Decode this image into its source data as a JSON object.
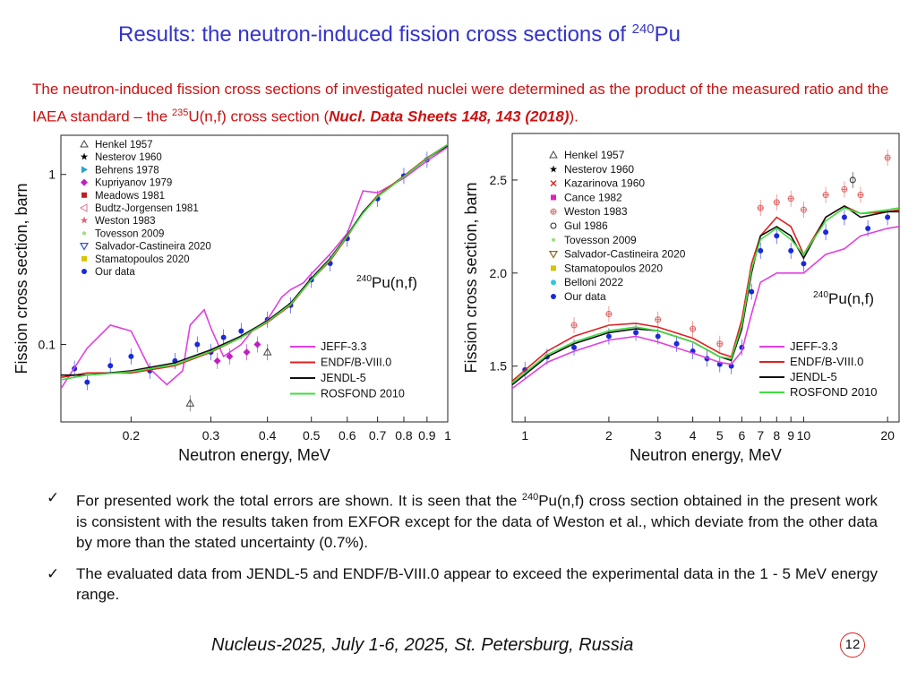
{
  "slide": {
    "title_main": "Results: the neutron-induced fission cross sections of ",
    "title_sup": "240",
    "title_tail": "Pu",
    "intro_part1": "The neutron-induced fission cross sections of investigated nuclei were determined as the product of the measured ratio and the IAEA standard – the ",
    "intro_sup": "235",
    "intro_part2": "U(n,f) cross section (",
    "intro_ref": "Nucl. Data Sheets 148, 143 (2018)",
    "intro_part3": ").",
    "bullets": [
      {
        "pre": "For presented work the total errors are shown. It is seen that the ",
        "sup": "240",
        "post": "Pu(n,f) cross section obtained in the present work is consistent with the results taken from EXFOR except for the data of Weston et al., which deviate from the other data by more than the stated uncertainty (0.7%)."
      },
      {
        "pre": "The evaluated data from JENDL-5 and ENDF/B-VIII.0 appear to exceed the experimental data in the 1 - 5 MeV energy range.",
        "sup": "",
        "post": ""
      }
    ],
    "check_glyph": "✓",
    "footer": "Nucleus-2025, July 1-6, 2025, St. Petersburg, Russia",
    "page_number": "12"
  },
  "chart_data": [
    {
      "type": "scatter",
      "xscale": "log",
      "yscale": "log",
      "xlim": [
        0.14,
        1.0
      ],
      "ylim": [
        0.035,
        1.7
      ],
      "xlabel": "Neutron energy, MeV",
      "ylabel": "Fission cross section, barn",
      "xticks": [
        0.2,
        0.3,
        0.4,
        0.5,
        0.6,
        0.7,
        0.8,
        0.9,
        1
      ],
      "xtick_labels": [
        "0.2",
        "0.3",
        "0.4",
        "0.5",
        "0.6",
        "0.7",
        "0.8",
        "0.9",
        "1"
      ],
      "yticks": [
        0.1,
        1
      ],
      "ytick_labels": [
        "0.1",
        "1"
      ],
      "reaction_sup": "240",
      "reaction": "Pu(n,f)",
      "legend_position": "top-left",
      "legend": [
        {
          "name": "Henkel 1957",
          "marker": "triangle",
          "color": "#444444"
        },
        {
          "name": "Nesterov 1960",
          "marker": "star",
          "color": "#000000"
        },
        {
          "name": "Behrens 1978",
          "marker": "triangle-right",
          "color": "#2aa6c8"
        },
        {
          "name": "Kupriyanov 1979",
          "marker": "diamond",
          "color": "#c020c0"
        },
        {
          "name": "Meadows 1981",
          "marker": "square",
          "color": "#c02020"
        },
        {
          "name": "Budtz-Jorgensen 1981",
          "marker": "triangle-left",
          "color": "#e07090"
        },
        {
          "name": "Weston 1983",
          "marker": "star",
          "color": "#e06070"
        },
        {
          "name": "Tovesson 2009",
          "marker": "dot",
          "color": "#9be07a"
        },
        {
          "name": "Salvador-Castineira 2020",
          "marker": "triangle-down",
          "color": "#3355cc"
        },
        {
          "name": "Stamatopoulos 2020",
          "marker": "square",
          "color": "#d8c400"
        },
        {
          "name": "Our data",
          "marker": "circle",
          "color": "#1a2ad8"
        }
      ],
      "line_legend_position": "bottom-right",
      "curves": [
        {
          "name": "JEFF-3.3",
          "color": "#e040e0",
          "x": [
            0.14,
            0.16,
            0.18,
            0.2,
            0.22,
            0.24,
            0.26,
            0.27,
            0.29,
            0.3,
            0.32,
            0.35,
            0.37,
            0.4,
            0.43,
            0.45,
            0.48,
            0.5,
            0.55,
            0.6,
            0.65,
            0.7,
            0.8,
            0.9,
            1.0
          ],
          "y": [
            0.055,
            0.095,
            0.13,
            0.12,
            0.072,
            0.058,
            0.07,
            0.13,
            0.16,
            0.125,
            0.085,
            0.1,
            0.12,
            0.14,
            0.19,
            0.21,
            0.23,
            0.26,
            0.34,
            0.45,
            0.8,
            0.78,
            0.95,
            1.2,
            1.45
          ]
        },
        {
          "name": "ENDF/B-VIII.0",
          "color": "#e02020",
          "x": [
            0.14,
            0.16,
            0.2,
            0.25,
            0.3,
            0.35,
            0.4,
            0.45,
            0.5,
            0.55,
            0.6,
            0.65,
            0.7,
            0.8,
            0.9,
            1.0
          ],
          "y": [
            0.064,
            0.068,
            0.068,
            0.075,
            0.09,
            0.11,
            0.135,
            0.17,
            0.24,
            0.31,
            0.43,
            0.6,
            0.75,
            0.98,
            1.25,
            1.5
          ]
        },
        {
          "name": "JENDL-5",
          "color": "#111111",
          "x": [
            0.14,
            0.16,
            0.2,
            0.25,
            0.3,
            0.35,
            0.4,
            0.45,
            0.5,
            0.55,
            0.6,
            0.65,
            0.7,
            0.8,
            0.9,
            1.0
          ],
          "y": [
            0.066,
            0.066,
            0.07,
            0.078,
            0.093,
            0.112,
            0.138,
            0.175,
            0.245,
            0.32,
            0.44,
            0.6,
            0.74,
            0.97,
            1.24,
            1.48
          ]
        },
        {
          "name": "ROSFOND 2010",
          "color": "#40dd40",
          "x": [
            0.14,
            0.16,
            0.2,
            0.25,
            0.3,
            0.35,
            0.4,
            0.45,
            0.5,
            0.55,
            0.6,
            0.65,
            0.7,
            0.8,
            0.9,
            1.0
          ],
          "y": [
            0.062,
            0.066,
            0.069,
            0.076,
            0.091,
            0.11,
            0.136,
            0.172,
            0.24,
            0.315,
            0.435,
            0.59,
            0.74,
            0.97,
            1.24,
            1.5
          ]
        }
      ],
      "measurements": [
        {
          "name": "Henkel 1957",
          "x": [
            0.27,
            0.4
          ],
          "y": [
            0.045,
            0.09
          ]
        },
        {
          "name": "Kupriyanov 1979",
          "x": [
            0.31,
            0.33,
            0.36,
            0.38
          ],
          "y": [
            0.08,
            0.085,
            0.09,
            0.1
          ]
        },
        {
          "name": "Our data",
          "x": [
            0.15,
            0.16,
            0.18,
            0.2,
            0.22,
            0.25,
            0.28,
            0.3,
            0.32,
            0.35,
            0.4,
            0.45,
            0.5,
            0.55,
            0.6,
            0.7,
            0.8,
            0.9
          ],
          "y": [
            0.072,
            0.06,
            0.075,
            0.085,
            0.07,
            0.08,
            0.1,
            0.09,
            0.11,
            0.12,
            0.14,
            0.17,
            0.24,
            0.3,
            0.42,
            0.72,
            0.98,
            1.22
          ]
        }
      ]
    },
    {
      "type": "scatter",
      "xscale": "log",
      "yscale": "linear",
      "xlim": [
        0.9,
        22
      ],
      "ylim": [
        1.2,
        2.75
      ],
      "xlabel": "Neutron energy, MeV",
      "ylabel": "Fission cross section, barn",
      "xticks": [
        1,
        2,
        3,
        4,
        5,
        6,
        7,
        8,
        9,
        10,
        20
      ],
      "xtick_labels": [
        "1",
        "2",
        "3",
        "4",
        "5",
        "6",
        "7",
        "8",
        "9",
        "10",
        "20"
      ],
      "yticks": [
        1.5,
        2.0,
        2.5
      ],
      "ytick_labels": [
        "1.5",
        "2.0",
        "2.5"
      ],
      "reaction_sup": "240",
      "reaction": "Pu(n,f)",
      "legend_position": "top-left",
      "legend": [
        {
          "name": "Henkel 1957",
          "marker": "triangle",
          "color": "#444444"
        },
        {
          "name": "Nesterov 1960",
          "marker": "star",
          "color": "#000000"
        },
        {
          "name": "Kazarinova 1960",
          "marker": "x",
          "color": "#dd2020"
        },
        {
          "name": "Cance 1982",
          "marker": "square",
          "color": "#e020c0"
        },
        {
          "name": "Weston 1983",
          "marker": "circle-plus",
          "color": "#e06060"
        },
        {
          "name": "Gul 1986",
          "marker": "circle-open",
          "color": "#222222"
        },
        {
          "name": "Tovesson 2009",
          "marker": "dot",
          "color": "#9be07a"
        },
        {
          "name": "Salvador-Castineira 2020",
          "marker": "triangle-down",
          "color": "#8a6a20"
        },
        {
          "name": "Stamatopoulos 2020",
          "marker": "square",
          "color": "#d8c400"
        },
        {
          "name": "Belloni 2022",
          "marker": "circle",
          "color": "#30c8e0"
        },
        {
          "name": "Our data",
          "marker": "circle",
          "color": "#1a2ad8"
        }
      ],
      "line_legend_position": "bottom-right",
      "curves": [
        {
          "name": "JEFF-3.3",
          "color": "#e040e0",
          "x": [
            0.9,
            1.2,
            1.5,
            2.0,
            2.5,
            3.0,
            4.0,
            5.0,
            5.5,
            6.0,
            6.5,
            7.0,
            8.0,
            10.0,
            12.0,
            14.0,
            16.0,
            20.0,
            22.0
          ],
          "y": [
            1.38,
            1.52,
            1.58,
            1.64,
            1.66,
            1.63,
            1.57,
            1.52,
            1.51,
            1.58,
            1.78,
            1.95,
            2.0,
            2.0,
            2.1,
            2.13,
            2.2,
            2.24,
            2.25
          ]
        },
        {
          "name": "ENDF/B-VIII.0",
          "color": "#e02020",
          "x": [
            0.9,
            1.2,
            1.5,
            2.0,
            2.5,
            3.0,
            4.0,
            5.0,
            5.5,
            6.0,
            6.5,
            7.0,
            8.0,
            9.0,
            10.0,
            12.0,
            14.0,
            16.0,
            20.0,
            22.0
          ],
          "y": [
            1.42,
            1.58,
            1.66,
            1.72,
            1.73,
            1.71,
            1.65,
            1.57,
            1.55,
            1.75,
            2.05,
            2.2,
            2.3,
            2.25,
            2.1,
            2.3,
            2.36,
            2.32,
            2.33,
            2.34
          ]
        },
        {
          "name": "JENDL-5",
          "color": "#111111",
          "x": [
            0.9,
            1.2,
            1.5,
            2.0,
            2.5,
            3.0,
            4.0,
            5.0,
            5.5,
            6.0,
            6.5,
            7.0,
            8.0,
            9.0,
            10.0,
            12.0,
            14.0,
            16.0,
            20.0,
            22.0
          ],
          "y": [
            1.4,
            1.55,
            1.62,
            1.68,
            1.7,
            1.69,
            1.63,
            1.55,
            1.53,
            1.7,
            2.0,
            2.2,
            2.25,
            2.2,
            2.08,
            2.3,
            2.36,
            2.3,
            2.33,
            2.33
          ]
        },
        {
          "name": "ROSFOND 2010",
          "color": "#40dd40",
          "x": [
            0.9,
            1.2,
            1.5,
            2.0,
            2.5,
            3.0,
            4.0,
            5.0,
            5.5,
            6.0,
            6.5,
            7.0,
            8.0,
            9.0,
            10.0,
            12.0,
            14.0,
            16.0,
            20.0,
            22.0
          ],
          "y": [
            1.41,
            1.56,
            1.63,
            1.69,
            1.71,
            1.69,
            1.63,
            1.55,
            1.54,
            1.72,
            2.02,
            2.18,
            2.24,
            2.18,
            2.1,
            2.28,
            2.35,
            2.32,
            2.34,
            2.35
          ]
        }
      ],
      "measurements": [
        {
          "name": "Weston 1983",
          "x": [
            1.5,
            2.0,
            3.0,
            4.0,
            5.0,
            7.0,
            8.0,
            9.0,
            10.0,
            12.0,
            14.0,
            16.0,
            20.0
          ],
          "y": [
            1.72,
            1.78,
            1.75,
            1.7,
            1.62,
            2.35,
            2.38,
            2.4,
            2.34,
            2.42,
            2.45,
            2.42,
            2.62
          ]
        },
        {
          "name": "Gul 1986",
          "x": [
            15.0
          ],
          "y": [
            2.5
          ]
        },
        {
          "name": "Our data",
          "x": [
            1.0,
            1.2,
            1.5,
            2.0,
            2.5,
            3.0,
            3.5,
            4.0,
            4.5,
            5.0,
            5.5,
            6.0,
            6.5,
            7.0,
            8.0,
            9.0,
            10.0,
            12.0,
            14.0,
            17.0,
            20.0
          ],
          "y": [
            1.48,
            1.55,
            1.6,
            1.66,
            1.68,
            1.66,
            1.62,
            1.58,
            1.54,
            1.51,
            1.5,
            1.6,
            1.9,
            2.12,
            2.2,
            2.12,
            2.05,
            2.22,
            2.3,
            2.24,
            2.3
          ]
        }
      ]
    }
  ]
}
